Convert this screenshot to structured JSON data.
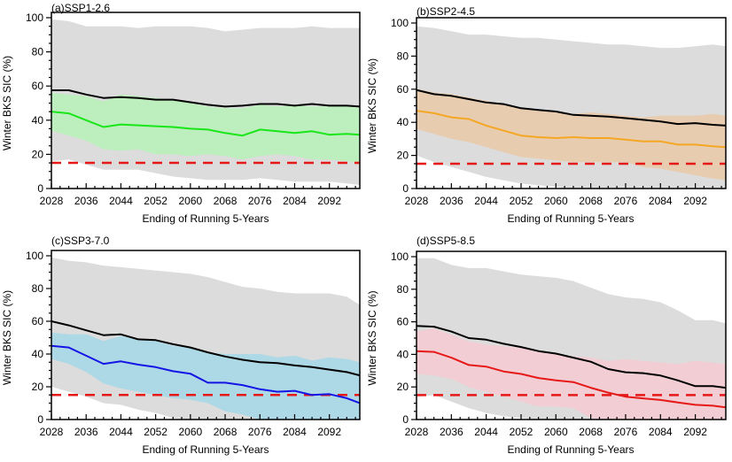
{
  "chart_data": [
    {
      "type": "line",
      "panel_label": "(a)SSP1-2.6",
      "title": "(a)SSP1-2.6",
      "xlabel": "Ending of Running 5-Years",
      "ylabel": "Winter BKS SIC (%)",
      "xlim": [
        2028,
        2099
      ],
      "ylim": [
        0,
        100
      ],
      "xticks": [
        2028,
        2036,
        2044,
        2052,
        2060,
        2068,
        2076,
        2084,
        2092
      ],
      "yticks": [
        0,
        20,
        40,
        60,
        80,
        100
      ],
      "threshold": 15,
      "colors": {
        "envelope": "#dcdcdc",
        "spread": "#bdeebd",
        "mean": "#19e619",
        "reference": "#000000",
        "threshold": "#e61919"
      },
      "x": [
        2028,
        2032,
        2036,
        2040,
        2044,
        2048,
        2052,
        2056,
        2060,
        2064,
        2068,
        2072,
        2076,
        2080,
        2084,
        2088,
        2092,
        2096,
        2099
      ],
      "series": [
        {
          "name": "envelope_upper",
          "values": [
            99,
            98,
            95,
            95,
            95,
            94,
            95,
            95,
            95,
            94,
            92,
            93,
            94,
            94,
            94,
            95,
            94,
            94,
            94
          ]
        },
        {
          "name": "envelope_lower",
          "values": [
            16,
            17,
            14,
            11,
            11,
            11,
            9,
            7,
            6,
            5,
            5,
            5,
            6,
            5,
            4,
            4,
            4,
            3,
            2
          ]
        },
        {
          "name": "spread_upper",
          "values": [
            56,
            55,
            54,
            51,
            55,
            54,
            53,
            52,
            50,
            48,
            47,
            47,
            49,
            48,
            49,
            48,
            48,
            49,
            48
          ]
        },
        {
          "name": "spread_lower",
          "values": [
            34,
            31,
            28,
            23,
            22,
            23,
            20,
            20,
            19,
            20,
            19,
            17,
            19,
            20,
            19,
            17,
            17,
            16,
            15
          ]
        },
        {
          "name": "ensemble_mean",
          "values": [
            45,
            44,
            40,
            36,
            37.5,
            37,
            36.5,
            36,
            35,
            34.5,
            32.5,
            31,
            34.5,
            33.5,
            32.5,
            33.5,
            31.5,
            32,
            31.5
          ]
        },
        {
          "name": "reference_black",
          "values": [
            57.5,
            57.5,
            55,
            53,
            53.5,
            53,
            52,
            52,
            50.5,
            49,
            48,
            48.5,
            49.5,
            49.5,
            48.5,
            49.5,
            48.5,
            48.5,
            48
          ]
        }
      ]
    },
    {
      "type": "line",
      "panel_label": "(b)SSP2-4.5",
      "title": "(b)SSP2-4.5",
      "xlabel": "Ending of Running 5-Years",
      "ylabel": "Winter BKS SIC (%)",
      "xlim": [
        2028,
        2099
      ],
      "ylim": [
        0,
        100
      ],
      "xticks": [
        2028,
        2036,
        2044,
        2052,
        2060,
        2068,
        2076,
        2084,
        2092
      ],
      "yticks": [
        0,
        20,
        40,
        60,
        80,
        100
      ],
      "threshold": 15,
      "colors": {
        "envelope": "#dcdcdc",
        "spread": "#e8ccb0",
        "mean": "#f5a623",
        "reference": "#000000",
        "threshold": "#e61919"
      },
      "x": [
        2028,
        2032,
        2036,
        2040,
        2044,
        2048,
        2052,
        2056,
        2060,
        2064,
        2068,
        2072,
        2076,
        2080,
        2084,
        2088,
        2092,
        2096,
        2099
      ],
      "series": [
        {
          "name": "envelope_upper",
          "values": [
            98,
            97,
            95,
            93,
            93,
            92,
            91,
            91,
            90,
            89,
            88,
            87,
            87,
            86,
            85,
            85,
            86,
            87,
            86
          ]
        },
        {
          "name": "envelope_lower",
          "values": [
            20,
            16,
            13,
            10,
            7,
            5,
            3,
            2,
            1,
            0,
            0,
            0,
            0,
            0,
            0,
            0,
            0,
            0,
            0
          ]
        },
        {
          "name": "spread_upper",
          "values": [
            60,
            58,
            57,
            55,
            53,
            51,
            49,
            47,
            47,
            45,
            46,
            45,
            44,
            43,
            44,
            44,
            44,
            45,
            44
          ]
        },
        {
          "name": "spread_lower",
          "values": [
            36,
            33,
            30,
            28,
            25,
            22,
            19,
            18,
            17,
            16,
            16,
            16,
            16,
            13,
            12,
            10,
            8,
            6,
            5
          ]
        },
        {
          "name": "ensemble_mean",
          "values": [
            47,
            45.5,
            43,
            42,
            38,
            35,
            32,
            31,
            30.5,
            31,
            30.5,
            30.5,
            29.5,
            28.5,
            28.5,
            26.5,
            26.5,
            25.5,
            25
          ]
        },
        {
          "name": "reference_black",
          "values": [
            59.5,
            57,
            56,
            54,
            52,
            51,
            48.5,
            47.5,
            46.5,
            44.5,
            44,
            43.5,
            42.5,
            41.5,
            40.5,
            39,
            39.5,
            38.5,
            38
          ]
        }
      ]
    },
    {
      "type": "line",
      "panel_label": "(c)SSP3-7.0",
      "title": "(c)SSP3-7.0",
      "xlabel": "Ending of Running 5-Years",
      "ylabel": "Winter BKS SIC (%)",
      "xlim": [
        2028,
        2099
      ],
      "ylim": [
        0,
        100
      ],
      "xticks": [
        2028,
        2036,
        2044,
        2052,
        2060,
        2068,
        2076,
        2084,
        2092
      ],
      "yticks": [
        0,
        20,
        40,
        60,
        80,
        100
      ],
      "threshold": 15,
      "colors": {
        "envelope": "#dcdcdc",
        "spread": "#add8e6",
        "mean": "#1414e6",
        "reference": "#000000",
        "threshold": "#e61919"
      },
      "x": [
        2028,
        2032,
        2036,
        2040,
        2044,
        2048,
        2052,
        2056,
        2060,
        2064,
        2068,
        2072,
        2076,
        2080,
        2084,
        2088,
        2092,
        2096,
        2099
      ],
      "series": [
        {
          "name": "envelope_upper",
          "values": [
            99,
            97,
            96,
            94,
            93,
            92,
            91,
            90,
            89,
            87,
            84,
            81,
            80,
            78,
            77,
            77,
            77,
            75,
            70
          ]
        },
        {
          "name": "envelope_lower",
          "values": [
            20,
            17,
            14,
            10,
            9,
            6,
            4,
            1,
            0,
            0,
            0,
            0,
            0,
            0,
            0,
            0,
            0,
            0,
            0
          ]
        },
        {
          "name": "spread_upper",
          "values": [
            53,
            52,
            52,
            48,
            51,
            49,
            48,
            45,
            44,
            41,
            40,
            40,
            40,
            38,
            39,
            36,
            38,
            37,
            35
          ]
        },
        {
          "name": "spread_lower",
          "values": [
            37,
            34,
            29,
            22,
            19,
            17,
            15,
            13,
            12,
            10,
            5,
            3,
            0,
            0,
            0,
            0,
            0,
            0,
            0
          ]
        },
        {
          "name": "ensemble_mean",
          "values": [
            45,
            44,
            39,
            34,
            35.5,
            33.5,
            32,
            29.5,
            28,
            22.5,
            22.5,
            21,
            18.5,
            17,
            17.5,
            15,
            15.5,
            13,
            10
          ]
        },
        {
          "name": "reference_black",
          "values": [
            60,
            57.5,
            54.5,
            51.5,
            52,
            49,
            48.5,
            46,
            44,
            41,
            38.5,
            36.5,
            35,
            34.5,
            33,
            32,
            30.5,
            29,
            27
          ]
        }
      ]
    },
    {
      "type": "line",
      "panel_label": "(d)SSP5-8.5",
      "title": "(d)SSP5-8.5",
      "xlabel": "Ending of Running 5-Years",
      "ylabel": "Winter BKS SIC (%)",
      "xlim": [
        2028,
        2099
      ],
      "ylim": [
        0,
        100
      ],
      "xticks": [
        2028,
        2036,
        2044,
        2052,
        2060,
        2068,
        2076,
        2084,
        2092
      ],
      "yticks": [
        0,
        20,
        40,
        60,
        80,
        100
      ],
      "threshold": 15,
      "colors": {
        "envelope": "#dcdcdc",
        "spread": "#f2cdd3",
        "mean": "#e61919",
        "reference": "#000000",
        "threshold": "#e61919"
      },
      "x": [
        2028,
        2032,
        2036,
        2040,
        2044,
        2048,
        2052,
        2056,
        2060,
        2064,
        2068,
        2072,
        2076,
        2080,
        2084,
        2088,
        2092,
        2096,
        2099
      ],
      "series": [
        {
          "name": "envelope_upper",
          "values": [
            99,
            99,
            95,
            93,
            93,
            91,
            89,
            88,
            87,
            85,
            81,
            77,
            75,
            74,
            72,
            67,
            61,
            61,
            59
          ]
        },
        {
          "name": "envelope_lower",
          "values": [
            14,
            15,
            11,
            7,
            4,
            2,
            1,
            0,
            0,
            0,
            0,
            0,
            0,
            0,
            0,
            0,
            0,
            0,
            0
          ]
        },
        {
          "name": "spread_upper",
          "values": [
            54,
            56,
            52,
            48,
            46,
            45,
            44,
            42,
            40,
            39,
            38,
            36,
            37,
            36,
            35,
            34,
            36,
            35,
            34
          ]
        },
        {
          "name": "spread_lower",
          "values": [
            28,
            27,
            25,
            20,
            17,
            14,
            11,
            8,
            8,
            7,
            1,
            0,
            0,
            0,
            0,
            0,
            0,
            0,
            0
          ]
        },
        {
          "name": "ensemble_mean",
          "values": [
            42,
            41.5,
            38,
            33.5,
            32.5,
            29.5,
            28,
            25.5,
            24,
            23,
            19.5,
            16.5,
            14,
            13,
            12,
            10.5,
            9,
            8.5,
            7.5
          ]
        },
        {
          "name": "reference_black",
          "values": [
            57.5,
            57,
            54,
            50,
            49,
            46.5,
            44.5,
            42,
            40.5,
            38,
            35.5,
            31,
            29,
            28.5,
            27,
            24,
            20.5,
            20.5,
            19.5
          ]
        }
      ]
    }
  ]
}
